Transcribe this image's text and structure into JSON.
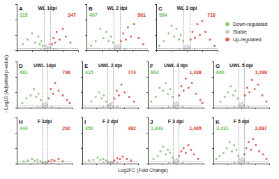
{
  "figure": {
    "xlabel": "Log2FC (Fold Change)",
    "ylabel": "- Log10 (Adjusted p-value)",
    "legend": "right",
    "vlines": [
      -1,
      1
    ],
    "hlines": [
      1.3
    ]
  },
  "chart_data": [
    {
      "type": "scatter",
      "panel": "A",
      "title": "WL 1dpi",
      "down_count": 315,
      "up_count": 347,
      "tick_labels": false,
      "grid": false,
      "xlim": [
        -10,
        10
      ],
      "xticks": [
        -10,
        -5,
        0,
        5,
        10
      ],
      "ylim": [
        0,
        30
      ],
      "yticks": [
        0,
        10,
        20,
        30
      ],
      "series": [
        {
          "name": "Down-regulated",
          "color": "#6cbf5c",
          "x": [
            -1.5,
            -2,
            -2.5,
            -3,
            -4,
            -5,
            -6.5,
            -8
          ],
          "values": [
            3,
            6,
            4,
            9,
            5,
            11,
            7,
            4
          ]
        },
        {
          "name": "Stable",
          "color": "#bdbdbd",
          "x": [
            -0.8,
            -0.5,
            -0.2,
            0,
            0.3,
            0.6,
            0.9,
            -2,
            2,
            3
          ],
          "values": [
            1,
            3,
            0.5,
            2,
            1.5,
            4,
            2,
            0.5,
            0.8,
            0.4
          ]
        },
        {
          "name": "Up-regulated",
          "color": "#e23a2e",
          "x": [
            1.5,
            2,
            2.5,
            3,
            4,
            5,
            6,
            7.5
          ],
          "values": [
            4,
            8,
            5,
            12,
            7,
            14,
            9,
            5
          ]
        }
      ]
    },
    {
      "type": "scatter",
      "panel": "B",
      "title": "WL 2 dpi",
      "down_count": 407,
      "up_count": 561,
      "tick_labels": false,
      "grid": false,
      "xlim": [
        -10,
        10
      ],
      "xticks": [
        -10,
        -5,
        0,
        5,
        10
      ],
      "ylim": [
        0,
        30
      ],
      "yticks": [
        0,
        10,
        20,
        30
      ],
      "series": [
        {
          "name": "Down-regulated",
          "color": "#6cbf5c",
          "x": [
            -1.3,
            -2,
            -2.8,
            -3.5,
            -4.5,
            -5.5,
            -7,
            -8.5
          ],
          "values": [
            5,
            9,
            6,
            12,
            8,
            14,
            6,
            3
          ]
        },
        {
          "name": "Stable",
          "color": "#bdbdbd",
          "x": [
            -0.9,
            -0.6,
            -0.3,
            0,
            0.3,
            0.6,
            0.9,
            -2.5,
            2.5
          ],
          "values": [
            1.2,
            3,
            0.6,
            2,
            3.5,
            1,
            2.5,
            0.6,
            0.7
          ]
        },
        {
          "name": "Up-regulated",
          "color": "#e23a2e",
          "x": [
            1.3,
            2,
            2.8,
            3.5,
            4.5,
            5.5,
            7,
            8.5
          ],
          "values": [
            6,
            11,
            7,
            15,
            9,
            17,
            8,
            4
          ]
        }
      ]
    },
    {
      "type": "scatter",
      "panel": "C",
      "title": "WL 3 dpi",
      "down_count": 584,
      "up_count": 716,
      "tick_labels": false,
      "grid": false,
      "xlim": [
        -10,
        10
      ],
      "xticks": [
        -10,
        -5,
        0,
        5,
        10
      ],
      "ylim": [
        0,
        30
      ],
      "yticks": [
        0,
        10,
        20,
        30
      ],
      "series": [
        {
          "name": "Down-regulated",
          "color": "#6cbf5c",
          "x": [
            -1.2,
            -2,
            -2.6,
            -3.4,
            -4.2,
            -5,
            -6,
            -7.5,
            -9
          ],
          "values": [
            6,
            10,
            7,
            14,
            9,
            16,
            11,
            6,
            3
          ]
        },
        {
          "name": "Stable",
          "color": "#bdbdbd",
          "x": [
            -0.9,
            -0.6,
            -0.3,
            0,
            0.3,
            0.6,
            0.9,
            -2.5,
            2.5
          ],
          "values": [
            1,
            2.5,
            0.5,
            1.5,
            3,
            1,
            2,
            0.6,
            0.7
          ]
        },
        {
          "name": "Up-regulated",
          "color": "#e23a2e",
          "x": [
            1.2,
            1.8,
            2.6,
            3.4,
            4.2,
            5,
            6,
            7.5,
            9
          ],
          "values": [
            7,
            12,
            8,
            17,
            10,
            19,
            12,
            7,
            3
          ]
        }
      ]
    },
    {
      "type": "scatter",
      "panel": "D",
      "title": "UWL 1dpi",
      "down_count": 481,
      "up_count": 796,
      "tick_labels": false,
      "grid": false,
      "xlim": [
        -10,
        10
      ],
      "xticks": [
        -10,
        -5,
        0,
        5,
        10
      ],
      "ylim": [
        0,
        30
      ],
      "yticks": [
        0,
        10,
        20,
        30
      ],
      "series": [
        {
          "name": "Down-regulated",
          "color": "#6cbf5c",
          "x": [
            -1.4,
            -2.2,
            -3,
            -3.8,
            -5,
            -6.5,
            -8
          ],
          "values": [
            5,
            9,
            7,
            12,
            8,
            6,
            3
          ]
        },
        {
          "name": "Stable",
          "color": "#bdbdbd",
          "x": [
            -0.9,
            -0.6,
            -0.3,
            0,
            0.3,
            0.6,
            0.9,
            -2.5,
            2.5
          ],
          "values": [
            1,
            2.5,
            0.5,
            1.5,
            3,
            1,
            2,
            0.6,
            0.7
          ]
        },
        {
          "name": "Up-regulated",
          "color": "#e23a2e",
          "x": [
            1.4,
            2.2,
            3,
            3.8,
            5,
            6.5,
            8,
            9
          ],
          "values": [
            6,
            12,
            9,
            16,
            11,
            8,
            5,
            3
          ]
        }
      ]
    },
    {
      "type": "scatter",
      "panel": "E",
      "title": "UWL 2 dpi",
      "down_count": 415,
      "up_count": 774,
      "tick_labels": false,
      "grid": false,
      "xlim": [
        -10,
        10
      ],
      "xticks": [
        -10,
        -5,
        0,
        5,
        10
      ],
      "ylim": [
        0,
        30
      ],
      "yticks": [
        0,
        10,
        20,
        30
      ],
      "series": [
        {
          "name": "Down-regulated",
          "color": "#6cbf5c",
          "x": [
            -1.5,
            -2.3,
            -3.1,
            -4,
            -5.2,
            -6.8
          ],
          "values": [
            4,
            8,
            6,
            10,
            7,
            4
          ]
        },
        {
          "name": "Stable",
          "color": "#bdbdbd",
          "x": [
            -0.9,
            -0.6,
            -0.3,
            0,
            0.3,
            0.6,
            0.9,
            -2.5,
            2.5
          ],
          "values": [
            1.2,
            2,
            0.5,
            2.5,
            1.5,
            3,
            1,
            0.5,
            0.8
          ]
        },
        {
          "name": "Up-regulated",
          "color": "#e23a2e",
          "x": [
            1.5,
            2.3,
            3.1,
            4,
            5.2,
            6.8,
            8.5
          ],
          "values": [
            6,
            11,
            8,
            15,
            10,
            7,
            4
          ]
        }
      ]
    },
    {
      "type": "scatter",
      "panel": "F",
      "title": "UWL 3 dpi",
      "down_count": 804,
      "up_count": {
        "value": 1338,
        "label": "1,338"
      },
      "tick_labels": false,
      "grid": false,
      "xlim": [
        -10,
        10
      ],
      "xticks": [
        -10,
        -5,
        0,
        5,
        10
      ],
      "ylim": [
        0,
        30
      ],
      "yticks": [
        0,
        10,
        20,
        30
      ],
      "series": [
        {
          "name": "Down-regulated",
          "color": "#6cbf5c",
          "x": [
            -1.2,
            -2,
            -2.8,
            -3.6,
            -4.6,
            -5.8,
            -7.2,
            -8.8
          ],
          "values": [
            7,
            12,
            9,
            16,
            11,
            13,
            7,
            4
          ]
        },
        {
          "name": "Stable",
          "color": "#bdbdbd",
          "x": [
            -0.9,
            -0.6,
            -0.3,
            0,
            0.3,
            0.6,
            0.9,
            -2.5,
            2.5
          ],
          "values": [
            1,
            3,
            0.6,
            2,
            3.5,
            1.2,
            2.5,
            0.6,
            0.7
          ]
        },
        {
          "name": "Up-regulated",
          "color": "#e23a2e",
          "x": [
            1.2,
            2,
            2.8,
            3.6,
            4.6,
            5.8,
            7.2,
            8.8,
            9.5
          ],
          "values": [
            8,
            14,
            11,
            19,
            13,
            16,
            9,
            5,
            3
          ]
        }
      ]
    },
    {
      "type": "scatter",
      "panel": "G",
      "title": "UWL 5 dpi",
      "down_count": 680,
      "up_count": {
        "value": 1298,
        "label": "1,298"
      },
      "tick_labels": false,
      "grid": false,
      "xlim": [
        -10,
        10
      ],
      "xticks": [
        -10,
        -5,
        0,
        5,
        10
      ],
      "ylim": [
        0,
        30
      ],
      "yticks": [
        0,
        10,
        20,
        30
      ],
      "series": [
        {
          "name": "Down-regulated",
          "color": "#6cbf5c",
          "x": [
            -1.3,
            -2.1,
            -2.9,
            -3.8,
            -4.8,
            -6,
            -7.5
          ],
          "values": [
            6,
            11,
            8,
            14,
            10,
            7,
            4
          ]
        },
        {
          "name": "Stable",
          "color": "#bdbdbd",
          "x": [
            -0.9,
            -0.6,
            -0.3,
            0,
            0.3,
            0.6,
            0.9,
            -2.5,
            2.5
          ],
          "values": [
            1,
            2.5,
            0.5,
            1.5,
            3,
            1,
            2,
            0.6,
            0.7
          ]
        },
        {
          "name": "Up-regulated",
          "color": "#e23a2e",
          "x": [
            1.3,
            2.1,
            2.9,
            3.8,
            4.8,
            6,
            7.5,
            9
          ],
          "values": [
            8,
            13,
            10,
            18,
            12,
            15,
            8,
            4
          ]
        }
      ]
    },
    {
      "type": "scatter",
      "panel": "H",
      "title": "F 1dpi",
      "down_count": 444,
      "up_count": 292,
      "tick_labels": false,
      "grid": false,
      "xlim": [
        -10,
        10
      ],
      "xticks": [
        -10,
        -5,
        0,
        5,
        10
      ],
      "ylim": [
        0,
        30
      ],
      "yticks": [
        0,
        10,
        20,
        30
      ],
      "series": [
        {
          "name": "Down-regulated",
          "color": "#6cbf5c",
          "x": [
            -1.5,
            -2.5,
            -3.5,
            -4.5,
            -6,
            -7.5
          ],
          "values": [
            1.5,
            2.5,
            2,
            3,
            2,
            1.5
          ]
        },
        {
          "name": "Stable",
          "color": "#bdbdbd",
          "x": [
            -0.9,
            -0.6,
            -0.3,
            0,
            0.3,
            0.6,
            0.9,
            -2.5,
            2.5
          ],
          "values": [
            0.5,
            1,
            0.3,
            0.8,
            1.1,
            0.6,
            0.9,
            0.4,
            0.5
          ]
        },
        {
          "name": "Up-regulated",
          "color": "#e23a2e",
          "x": [
            1.5,
            2.5,
            3.5,
            5,
            6.5
          ],
          "values": [
            1.5,
            2.5,
            2,
            3,
            1.5
          ]
        }
      ]
    },
    {
      "type": "scatter",
      "panel": "I",
      "title": "F 2 dpi",
      "down_count": 350,
      "up_count": 482,
      "tick_labels": false,
      "grid": false,
      "xlim": [
        -10,
        10
      ],
      "xticks": [
        -10,
        -5,
        0,
        5,
        10
      ],
      "ylim": [
        0,
        30
      ],
      "yticks": [
        0,
        10,
        20,
        30
      ],
      "series": [
        {
          "name": "Down-regulated",
          "color": "#6cbf5c",
          "x": [
            -1.5,
            -2.5,
            -3.5,
            -4.5,
            -6,
            -7.5
          ],
          "values": [
            2,
            3,
            2.5,
            4,
            2.5,
            2
          ]
        },
        {
          "name": "Stable",
          "color": "#bdbdbd",
          "x": [
            -0.9,
            -0.6,
            -0.3,
            0,
            0.3,
            0.6,
            0.9,
            -2.5,
            2.5
          ],
          "values": [
            0.6,
            1.1,
            0.3,
            0.9,
            1.2,
            0.5,
            1,
            0.4,
            0.5
          ]
        },
        {
          "name": "Up-regulated",
          "color": "#e23a2e",
          "x": [
            1.5,
            2.5,
            3.5,
            4.5,
            6,
            7.5
          ],
          "values": [
            2,
            3.5,
            3,
            4.5,
            3,
            2
          ]
        }
      ]
    },
    {
      "type": "scatter",
      "panel": "J",
      "title": "F 3 dpi",
      "down_count": {
        "value": 1943,
        "label": "1,943"
      },
      "up_count": {
        "value": 1465,
        "label": "1,465"
      },
      "tick_labels": false,
      "grid": false,
      "xlim": [
        -10,
        10
      ],
      "xticks": [
        -10,
        -5,
        0,
        5,
        10
      ],
      "ylim": [
        0,
        30
      ],
      "yticks": [
        0,
        10,
        20,
        30
      ],
      "series": [
        {
          "name": "Down-regulated",
          "color": "#6cbf5c",
          "x": [
            -1.2,
            -2,
            -2.8,
            -3.6,
            -4.5,
            -5.5,
            -6.5,
            -8
          ],
          "values": [
            4,
            7,
            9,
            6,
            11,
            8,
            5,
            3
          ]
        },
        {
          "name": "Stable",
          "color": "#bdbdbd",
          "x": [
            -0.9,
            -0.6,
            -0.3,
            0,
            0.3,
            0.6,
            0.9,
            -2.5,
            2.5
          ],
          "values": [
            1,
            2.5,
            0.5,
            1.5,
            3,
            1,
            2,
            0.6,
            0.7
          ]
        },
        {
          "name": "Up-regulated",
          "color": "#e23a2e",
          "x": [
            1.2,
            2,
            2.8,
            3.6,
            4.5,
            5.5,
            6.5,
            8
          ],
          "values": [
            5,
            8,
            10,
            7,
            12,
            9,
            6,
            3
          ]
        }
      ]
    },
    {
      "type": "scatter",
      "panel": "K",
      "title": "F 5 dpi",
      "down_count": {
        "value": 2431,
        "label": "2,431"
      },
      "up_count": {
        "value": 2687,
        "label": "2,687"
      },
      "tick_labels": false,
      "grid": false,
      "xlim": [
        -10,
        10
      ],
      "xticks": [
        -10,
        -5,
        0,
        5,
        10
      ],
      "ylim": [
        0,
        30
      ],
      "yticks": [
        0,
        10,
        20,
        30
      ],
      "series": [
        {
          "name": "Down-regulated",
          "color": "#6cbf5c",
          "x": [
            -1.1,
            -1.8,
            -2.6,
            -3.4,
            -4.2,
            -5.2,
            -6.4,
            -7.8,
            -9
          ],
          "values": [
            5,
            9,
            12,
            8,
            14,
            10,
            7,
            5,
            3
          ]
        },
        {
          "name": "Stable",
          "color": "#bdbdbd",
          "x": [
            -0.9,
            -0.6,
            -0.3,
            0,
            0.3,
            0.6,
            0.9,
            -2.5,
            2.5
          ],
          "values": [
            1.2,
            3,
            0.6,
            2,
            3.5,
            1.2,
            2.5,
            0.6,
            0.7
          ]
        },
        {
          "name": "Up-regulated",
          "color": "#e23a2e",
          "x": [
            1.1,
            1.8,
            2.6,
            3.4,
            4.2,
            5.2,
            6.4,
            7.8,
            9
          ],
          "values": [
            6,
            10,
            14,
            9,
            16,
            12,
            8,
            6,
            3
          ]
        }
      ]
    }
  ]
}
